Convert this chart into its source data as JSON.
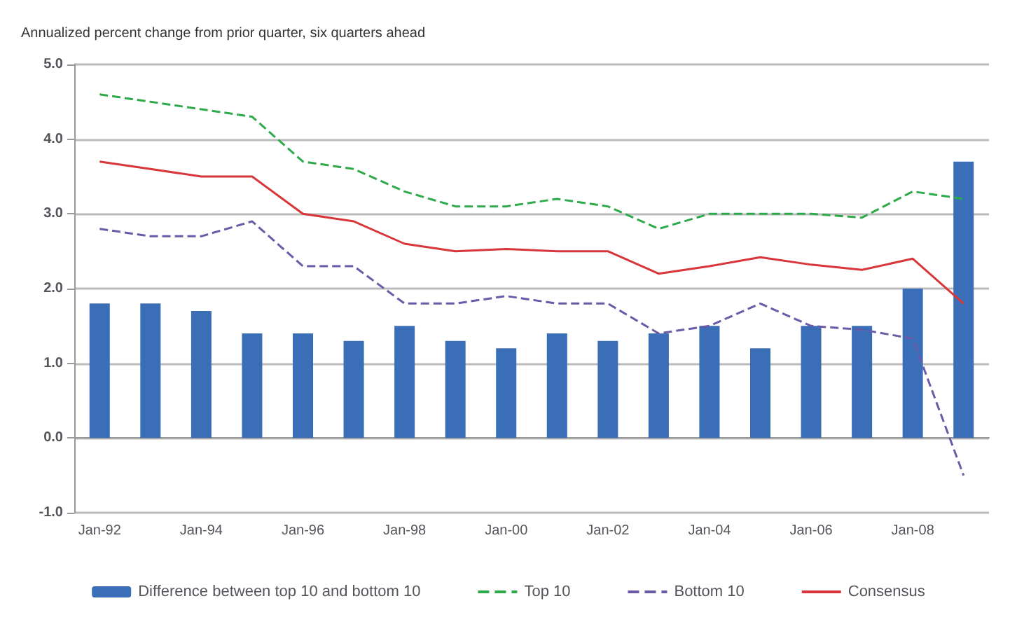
{
  "chart_data": {
    "type": "bar",
    "subtitle": "Annualized percent change from prior quarter, six quarters ahead",
    "categories": [
      "Jan-92",
      null,
      "Jan-94",
      null,
      "Jan-96",
      null,
      "Jan-98",
      null,
      "Jan-00",
      null,
      "Jan-02",
      null,
      "Jan-04",
      null,
      "Jan-06",
      null,
      "Jan-08",
      null
    ],
    "series": [
      {
        "name": "Difference between top 10 and bottom 10",
        "color": "#3a6fb7",
        "values": [
          1.8,
          1.8,
          1.7,
          1.4,
          1.4,
          1.3,
          1.5,
          1.3,
          1.2,
          1.4,
          1.3,
          1.4,
          1.5,
          1.2,
          1.5,
          1.5,
          2.0,
          3.7
        ]
      },
      {
        "name": "Top 10",
        "type": "line",
        "line_style": "dashed",
        "color": "#2eaa4a",
        "values": [
          4.6,
          4.5,
          4.4,
          4.3,
          3.7,
          3.6,
          3.3,
          3.1,
          3.1,
          3.2,
          3.1,
          2.8,
          3.0,
          3.0,
          3.0,
          2.95,
          3.3,
          3.2
        ]
      },
      {
        "name": "Bottom 10",
        "type": "line",
        "line_style": "dashed",
        "color": "#6a5aa8",
        "values": [
          2.8,
          2.7,
          2.7,
          2.9,
          2.3,
          2.3,
          1.8,
          1.8,
          1.9,
          1.8,
          1.8,
          1.4,
          1.5,
          1.8,
          1.5,
          1.45,
          1.33,
          -0.5
        ]
      },
      {
        "name": "Consensus",
        "type": "line",
        "line_style": "solid",
        "color": "#d8363a",
        "values": [
          3.7,
          3.6,
          3.5,
          3.5,
          3.0,
          2.9,
          2.6,
          2.5,
          2.53,
          2.5,
          2.5,
          2.2,
          2.3,
          2.42,
          2.32,
          2.25,
          2.4,
          1.8
        ]
      }
    ],
    "ylim": [
      -1,
      5
    ],
    "yticks": [
      {
        "value": -1,
        "label": "-1.0"
      },
      {
        "value": 0,
        "label": "0.0"
      },
      {
        "value": 1,
        "label": "1.0"
      },
      {
        "value": 2,
        "label": "2.0"
      },
      {
        "value": 3,
        "label": "3.0"
      },
      {
        "value": 4,
        "label": "4.0"
      },
      {
        "value": 5,
        "label": "5.0"
      }
    ],
    "grid": "y",
    "legend": "bottom",
    "marker": "none"
  }
}
